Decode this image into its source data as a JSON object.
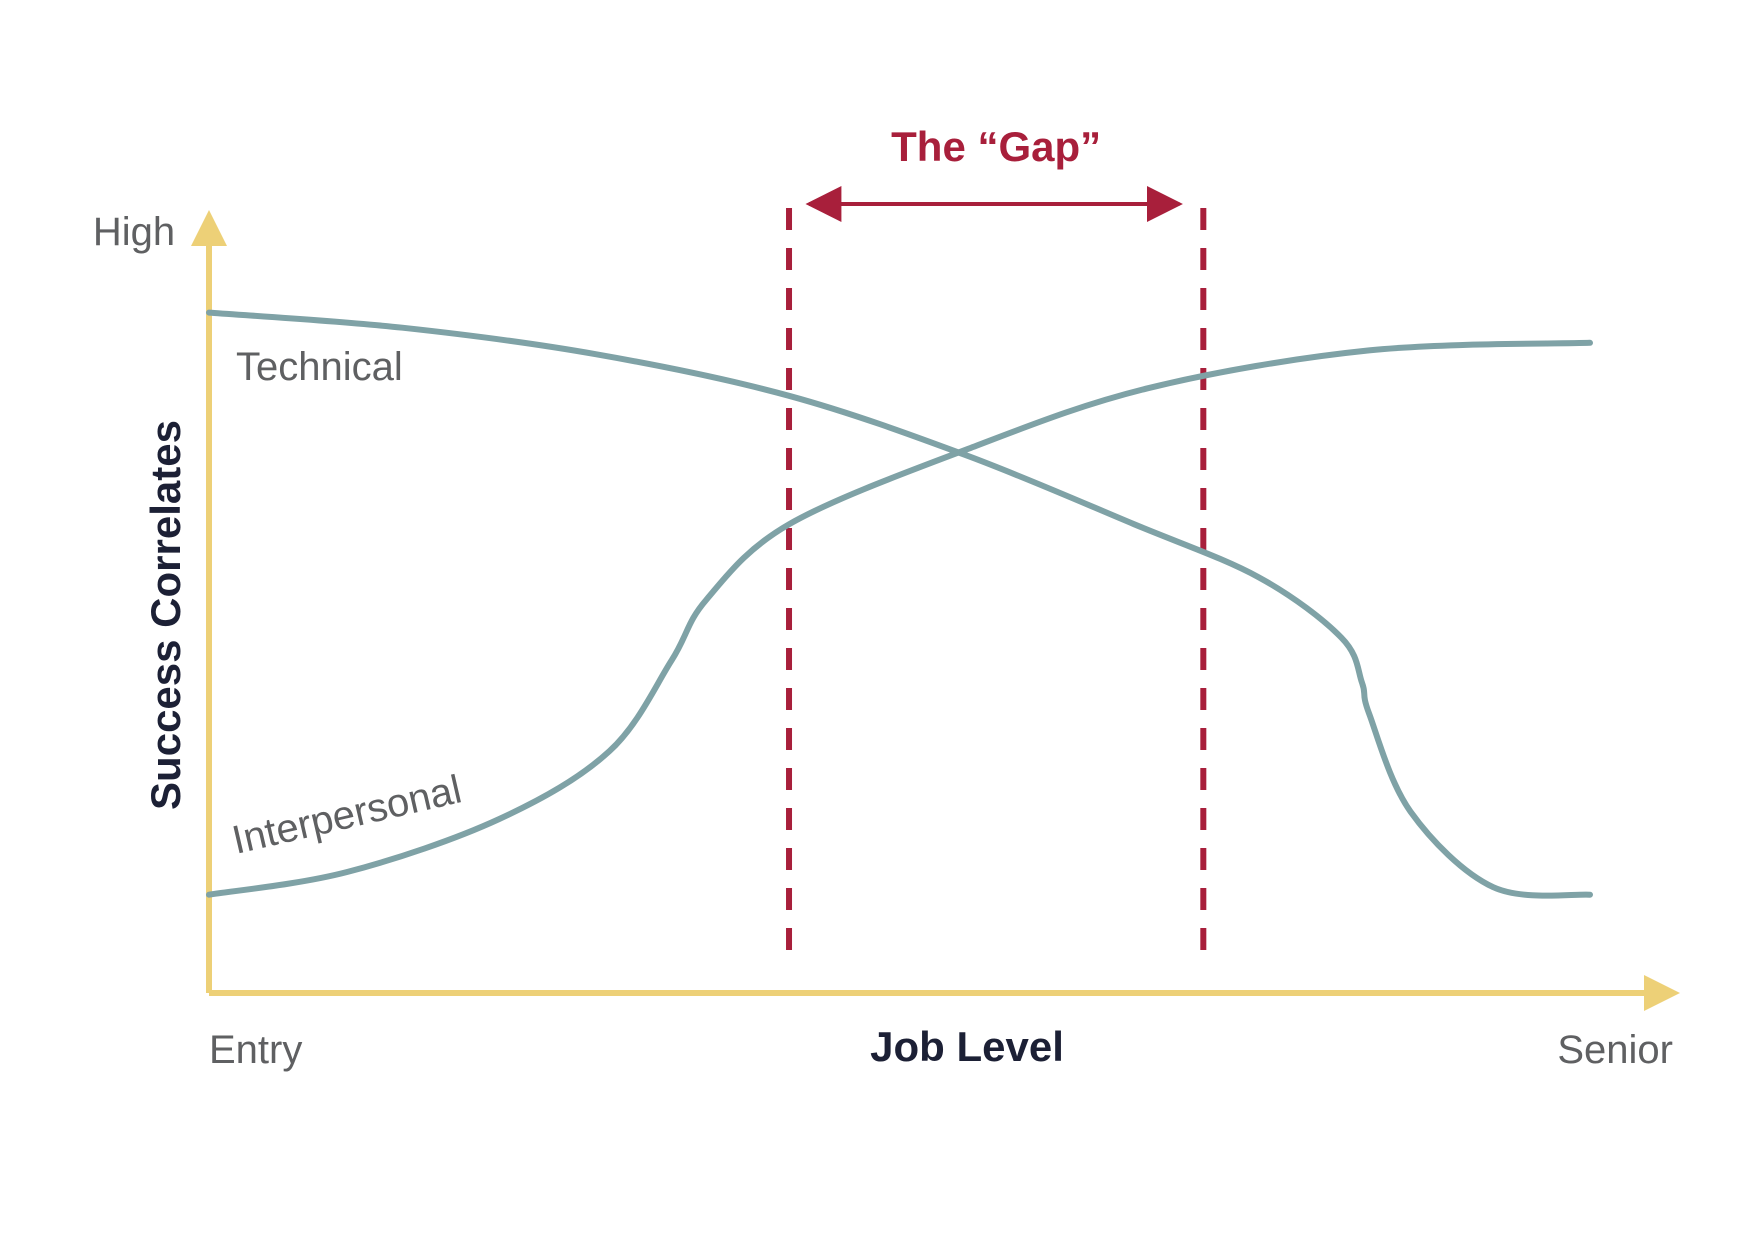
{
  "colors": {
    "axis": "#edd077",
    "curve": "#7fa2a6",
    "gap": "#a81f3b",
    "label": "#5f6062",
    "axis_title": "#1c2035"
  },
  "chart_data": {
    "type": "line",
    "xlabel": "Job Level",
    "ylabel": "Success Correlates",
    "xlim": [
      0,
      100
    ],
    "ylim": [
      0,
      100
    ],
    "x_tick_labels": {
      "start": "Entry",
      "end": "Senior"
    },
    "y_tick_labels": {
      "end": "High"
    },
    "series": [
      {
        "name": "Technical",
        "points": [
          [
            0,
            90
          ],
          [
            14,
            88
          ],
          [
            28,
            84.5
          ],
          [
            42,
            79
          ],
          [
            55,
            71
          ],
          [
            67,
            62
          ],
          [
            76,
            55
          ],
          [
            82,
            47
          ],
          [
            83.5,
            41
          ],
          [
            84,
            37
          ],
          [
            87,
            24
          ],
          [
            93,
            14
          ],
          [
            100,
            13
          ]
        ]
      },
      {
        "name": "Interpersonal",
        "points": [
          [
            0,
            13
          ],
          [
            10,
            16
          ],
          [
            21,
            23
          ],
          [
            29,
            32
          ],
          [
            33.5,
            44
          ],
          [
            36,
            52
          ],
          [
            42,
            62
          ],
          [
            55,
            72
          ],
          [
            68,
            80
          ],
          [
            84,
            85
          ],
          [
            100,
            86
          ]
        ]
      }
    ],
    "annotations": [
      {
        "type": "range",
        "label": "The “Gap”",
        "x_start": 42,
        "x_end": 72
      }
    ]
  }
}
